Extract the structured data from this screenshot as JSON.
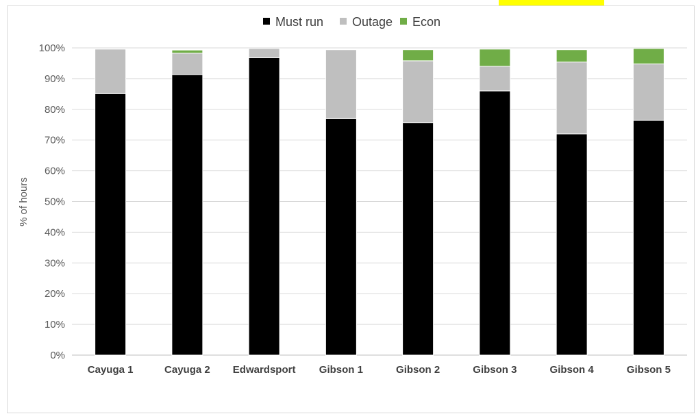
{
  "chart_data": {
    "type": "bar",
    "stacked": true,
    "title": "",
    "xlabel": "",
    "ylabel": "% of hours",
    "ylim": [
      0,
      100
    ],
    "yticks": [
      "0%",
      "10%",
      "20%",
      "30%",
      "40%",
      "50%",
      "60%",
      "70%",
      "80%",
      "90%",
      "100%"
    ],
    "categories": [
      "Cayuga 1",
      "Cayuga 2",
      "Edwardsport",
      "Gibson 1",
      "Gibson 2",
      "Gibson 3",
      "Gibson 4",
      "Gibson 5"
    ],
    "series": [
      {
        "name": "Must run",
        "color": "#000000",
        "values": [
          85.2,
          91.3,
          96.8,
          77.0,
          75.6,
          86.0,
          72.0,
          76.4
        ]
      },
      {
        "name": "Outage",
        "color": "#bfbfbf",
        "values": [
          14.4,
          7.0,
          3.0,
          22.4,
          20.2,
          8.0,
          23.4,
          18.4
        ]
      },
      {
        "name": "Econ",
        "color": "#70ad47",
        "values": [
          0.0,
          1.0,
          0.0,
          0.0,
          3.6,
          5.6,
          4.0,
          5.0
        ]
      }
    ],
    "grid": true,
    "legend_position": "top"
  }
}
